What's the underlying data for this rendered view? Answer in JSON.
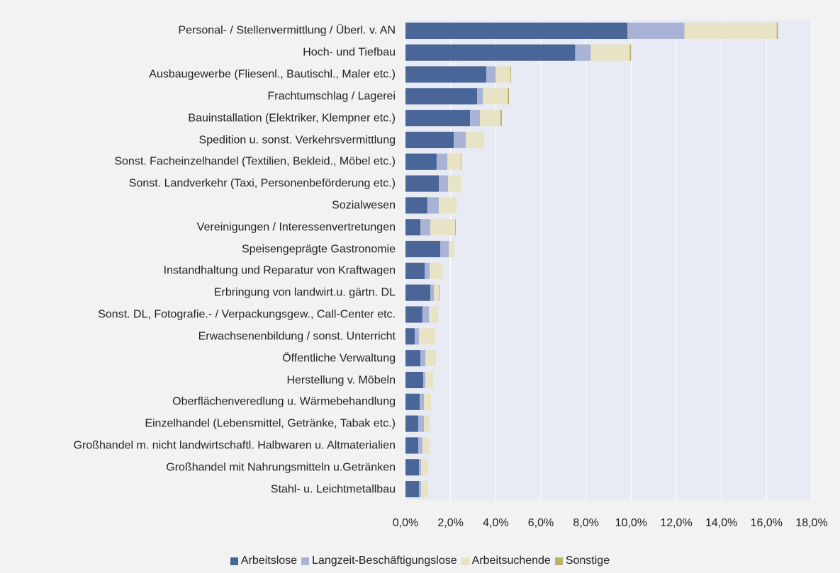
{
  "chart_data": {
    "type": "stacked_barh",
    "categories": [
      "Personal- / Stellenvermittlung / Überl. v. AN",
      "Hoch- und Tiefbau",
      "Ausbaugewerbe (Fliesenl., Bautischl., Maler etc.)",
      "Frachtumschlag / Lagerei",
      "Bauinstallation (Elektriker, Klempner etc.)",
      "Spedition u. sonst. Verkehrsvermittlung",
      "Sonst. Facheinzelhandel (Textilien, Bekleid., Möbel etc.)",
      "Sonst. Landverkehr (Taxi, Personenbeförderung etc.)",
      "Sozialwesen",
      "Vereinigungen / Interessenvertretungen",
      "Speisengeprägte Gastronomie",
      "Instandhaltung und Reparatur von Kraftwagen",
      "Erbringung von landwirt.u. gärtn. DL",
      "Sonst. DL, Fotografie.- / Verpackungsgew., Call-Center etc.",
      "Erwachsenenbildung / sonst. Unterricht",
      "Öffentliche Verwaltung",
      "Herstellung v. Möbeln",
      "Oberflächenveredlung u. Wärmebehandlung",
      "Einzelhandel (Lebensmittel, Getränke, Tabak etc.)",
      "Großhandel m. nicht landwirtschaftl. Halbwaren u. Altmaterialien",
      "Großhandel mit Nahrungsmitteln u.Getränken",
      "Stahl- u. Leichtmetallbau"
    ],
    "series": [
      {
        "name": "Arbeitslose",
        "color": "#4a6598",
        "values": [
          9.84,
          7.52,
          3.58,
          3.18,
          2.86,
          2.14,
          1.38,
          1.48,
          0.97,
          0.66,
          1.54,
          0.85,
          1.1,
          0.75,
          0.41,
          0.66,
          0.79,
          0.63,
          0.57,
          0.57,
          0.6,
          0.6
        ]
      },
      {
        "name": "Langzeit-Beschäftigungslose",
        "color": "#a9b3d5",
        "values": [
          2.52,
          0.69,
          0.42,
          0.25,
          0.44,
          0.53,
          0.48,
          0.41,
          0.51,
          0.44,
          0.38,
          0.22,
          0.16,
          0.29,
          0.19,
          0.22,
          0.09,
          0.19,
          0.25,
          0.18,
          0.09,
          0.09
        ]
      },
      {
        "name": "Arbeitsuchende",
        "color": "#e8e3c5",
        "values": [
          4.09,
          1.73,
          0.65,
          1.1,
          0.91,
          0.82,
          0.59,
          0.56,
          0.78,
          1.1,
          0.25,
          0.57,
          0.22,
          0.41,
          0.72,
          0.47,
          0.35,
          0.31,
          0.25,
          0.32,
          0.32,
          0.32
        ]
      },
      {
        "name": "Sonstige",
        "color": "#b8b26b",
        "values": [
          0.06,
          0.06,
          0.03,
          0.06,
          0.06,
          0,
          0.03,
          0,
          0,
          0.03,
          0,
          0,
          0.03,
          0,
          0,
          0,
          0,
          0,
          0,
          0,
          0,
          0
        ]
      }
    ],
    "xlim": [
      0,
      18
    ],
    "xticks": [
      {
        "value": 0,
        "label": "0,0%"
      },
      {
        "value": 2,
        "label": "2,0%"
      },
      {
        "value": 4,
        "label": "4,0%"
      },
      {
        "value": 6,
        "label": "6,0%"
      },
      {
        "value": 8,
        "label": "8,0%"
      },
      {
        "value": 10,
        "label": "10,0%"
      },
      {
        "value": 12,
        "label": "12,0%"
      },
      {
        "value": 14,
        "label": "14,0%"
      },
      {
        "value": 16,
        "label": "16,0%"
      },
      {
        "value": 18,
        "label": "18,0%"
      }
    ],
    "grid": true,
    "legend": "bottom"
  }
}
